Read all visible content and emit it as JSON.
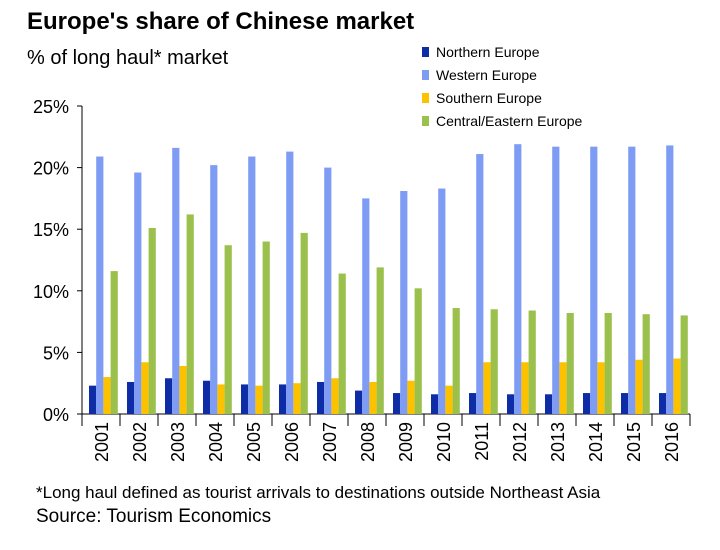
{
  "chart_data": {
    "type": "bar",
    "title": "Europe's share of Chinese market",
    "subtitle": "% of long haul* market",
    "categories": [
      "2001",
      "2002",
      "2003",
      "2004",
      "2005",
      "2006",
      "2007",
      "2008",
      "2009",
      "2010",
      "2011",
      "2012",
      "2013",
      "2014",
      "2015",
      "2016"
    ],
    "series": [
      {
        "name": "Northern Europe",
        "color": "#0d2ca6",
        "values": [
          2.3,
          2.6,
          2.9,
          2.7,
          2.4,
          2.4,
          2.6,
          1.9,
          1.7,
          1.6,
          1.7,
          1.6,
          1.6,
          1.7,
          1.7,
          1.7
        ]
      },
      {
        "name": "Western Europe",
        "color": "#7f9cf5",
        "values": [
          20.9,
          19.6,
          21.6,
          20.2,
          20.9,
          21.3,
          20.0,
          17.5,
          18.1,
          18.3,
          21.1,
          21.9,
          21.7,
          21.7,
          21.7,
          21.8
        ]
      },
      {
        "name": "Southern Europe",
        "color": "#fcc200",
        "values": [
          3.0,
          4.2,
          3.9,
          2.4,
          2.3,
          2.5,
          2.9,
          2.6,
          2.7,
          2.3,
          4.2,
          4.2,
          4.2,
          4.2,
          4.4,
          4.5
        ]
      },
      {
        "name": "Central/Eastern Europe",
        "color": "#9bc04c",
        "values": [
          11.6,
          15.1,
          16.2,
          13.7,
          14.0,
          14.7,
          11.4,
          11.9,
          10.2,
          8.6,
          8.5,
          8.4,
          8.2,
          8.2,
          8.1,
          8.0
        ]
      }
    ],
    "ylim": [
      0,
      25
    ],
    "yticks": [
      "0%",
      "5%",
      "10%",
      "15%",
      "20%",
      "25%"
    ],
    "grid": false,
    "legend_position": "top-right"
  },
  "footnote": "*Long haul defined as tourist arrivals to destinations outside Northeast Asia",
  "source": "Source: Tourism Economics"
}
